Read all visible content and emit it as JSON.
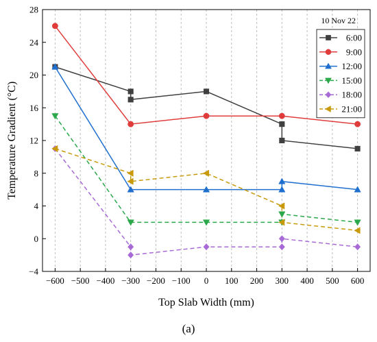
{
  "chart_data": {
    "type": "line",
    "xlabel": "Top Slab Width (mm)",
    "ylabel": "Temperature Gradient (°C)",
    "xlim": [
      -650,
      650
    ],
    "ylim": [
      -4,
      28
    ],
    "xticks": [
      -600,
      -500,
      -400,
      -300,
      -200,
      -100,
      0,
      100,
      200,
      300,
      400,
      500,
      600
    ],
    "yticks": [
      -4,
      0,
      4,
      8,
      12,
      16,
      20,
      24,
      28
    ],
    "x_tick_labels": [
      "−600",
      "−500",
      "−400",
      "−300",
      "−200",
      "−100",
      "0",
      "100",
      "200",
      "300",
      "400",
      "500",
      "600"
    ],
    "y_tick_labels": [
      "−4",
      "0",
      "4",
      "8",
      "12",
      "16",
      "20",
      "24",
      "28"
    ],
    "grid": "vertical dashed",
    "annotation": "10 Nov 22",
    "legend_placement": "top-right",
    "series": [
      {
        "name": "6:00",
        "color": "#404040",
        "marker": "square",
        "dash": "solid",
        "points": [
          [
            -600,
            21
          ],
          [
            -300,
            18
          ],
          [
            -300,
            17
          ],
          [
            0,
            18
          ],
          [
            300,
            14
          ],
          [
            300,
            12
          ],
          [
            600,
            11
          ]
        ]
      },
      {
        "name": "9:00",
        "color": "#e03c3c",
        "marker": "circle",
        "dash": "solid",
        "points": [
          [
            -600,
            26
          ],
          [
            -300,
            14
          ],
          [
            0,
            15
          ],
          [
            300,
            15
          ],
          [
            600,
            14
          ]
        ]
      },
      {
        "name": "12:00",
        "color": "#1f6fcf",
        "marker": "triangle-up",
        "dash": "solid",
        "points": [
          [
            -600,
            21
          ],
          [
            -300,
            6
          ],
          [
            0,
            6
          ],
          [
            300,
            6
          ],
          [
            300,
            7
          ],
          [
            600,
            6
          ]
        ]
      },
      {
        "name": "15:00",
        "color": "#2aa84a",
        "marker": "triangle-down",
        "dash": "dashed",
        "points": [
          [
            -600,
            15
          ],
          [
            -300,
            2
          ],
          [
            0,
            2
          ],
          [
            300,
            2
          ],
          [
            300,
            3
          ],
          [
            600,
            2
          ]
        ]
      },
      {
        "name": "18:00",
        "color": "#a86ad6",
        "marker": "diamond",
        "dash": "dashed",
        "points": [
          [
            -600,
            11
          ],
          [
            -300,
            -1
          ],
          [
            -300,
            -2
          ],
          [
            0,
            -1
          ],
          [
            300,
            -1
          ],
          [
            300,
            0
          ],
          [
            600,
            -1
          ]
        ]
      },
      {
        "name": "21:00",
        "color": "#c89a0a",
        "marker": "triangle-left",
        "dash": "dashed",
        "points": [
          [
            -600,
            11
          ],
          [
            -300,
            8
          ],
          [
            -300,
            7
          ],
          [
            0,
            8
          ],
          [
            300,
            4
          ],
          [
            300,
            2
          ],
          [
            600,
            1
          ]
        ]
      }
    ]
  },
  "caption": "(a)"
}
